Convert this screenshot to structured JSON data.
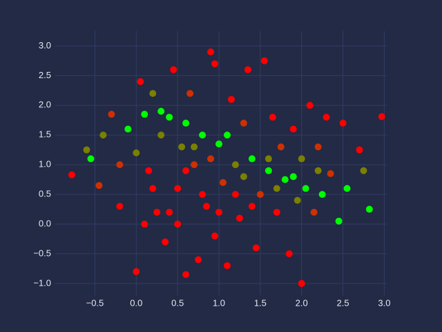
{
  "chart_data": {
    "type": "scatter",
    "xlim": [
      -0.98,
      3.03
    ],
    "ylim": [
      -1.2,
      3.25
    ],
    "grid": true,
    "xticks": [
      {
        "value": -0.5,
        "label": "−0.5"
      },
      {
        "value": 0,
        "label": "0.0"
      },
      {
        "value": 0.5,
        "label": "0.5"
      },
      {
        "value": 1,
        "label": "1.0"
      },
      {
        "value": 1.5,
        "label": "1.5"
      },
      {
        "value": 2,
        "label": "2.0"
      },
      {
        "value": 2.5,
        "label": "2.5"
      },
      {
        "value": 3,
        "label": "3.0"
      }
    ],
    "yticks": [
      {
        "value": -1,
        "label": "−1.0"
      },
      {
        "value": -0.5,
        "label": "−0.5"
      },
      {
        "value": 0,
        "label": "0.0"
      },
      {
        "value": 0.5,
        "label": "0.5"
      },
      {
        "value": 1,
        "label": "1.0"
      },
      {
        "value": 1.5,
        "label": "1.5"
      },
      {
        "value": 2,
        "label": "2.0"
      },
      {
        "value": 2.5,
        "label": "2.5"
      },
      {
        "value": 3,
        "label": "3.0"
      }
    ],
    "x": [
      -0.78,
      -0.6,
      -0.55,
      -0.45,
      -0.4,
      -0.3,
      -0.2,
      -0.1,
      0.0,
      0.05,
      0.1,
      0.15,
      0.2,
      0.25,
      0.3,
      0.35,
      0.4,
      0.45,
      0.5,
      0.55,
      0.6,
      0.65,
      0.7,
      0.75,
      0.8,
      0.85,
      0.9,
      0.95,
      1.0,
      1.05,
      1.1,
      1.15,
      1.2,
      1.25,
      1.3,
      1.35,
      1.4,
      1.45,
      1.5,
      1.55,
      1.6,
      1.65,
      1.7,
      1.75,
      1.8,
      1.85,
      1.9,
      1.95,
      2.0,
      2.0,
      2.05,
      2.1,
      2.15,
      2.2,
      2.25,
      2.3,
      2.35,
      2.45,
      2.5,
      2.55,
      2.7,
      2.75,
      2.82,
      2.97,
      0.2,
      0.4,
      0.6,
      0.8,
      1.0,
      1.2,
      1.4,
      0.5,
      0.9,
      1.1,
      0.6,
      0.3,
      1.6,
      1.3,
      0.7,
      1.9,
      0.0,
      -0.2,
      0.1,
      1.7,
      2.2,
      0.95
    ],
    "values": [
      0.83,
      1.25,
      1.1,
      0.65,
      1.5,
      1.85,
      0.3,
      1.6,
      -0.8,
      2.4,
      1.85,
      0.9,
      2.2,
      0.2,
      1.5,
      -0.3,
      1.8,
      2.6,
      0.6,
      1.3,
      -0.85,
      2.2,
      1.0,
      -0.6,
      1.5,
      0.3,
      2.9,
      2.7,
      1.35,
      0.7,
      -0.7,
      2.1,
      1.0,
      0.1,
      1.7,
      2.6,
      1.1,
      -0.4,
      0.5,
      2.75,
      0.9,
      1.8,
      0.2,
      1.3,
      0.75,
      -0.5,
      1.6,
      0.4,
      -1.0,
      1.1,
      0.6,
      2.0,
      0.2,
      1.3,
      0.5,
      1.8,
      0.85,
      0.05,
      1.7,
      0.6,
      1.25,
      0.9,
      0.25,
      1.81,
      0.6,
      0.2,
      0.9,
      0.5,
      0.2,
      0.5,
      0.3,
      0.0,
      1.1,
      1.5,
      1.7,
      1.9,
      1.1,
      0.8,
      1.3,
      0.8,
      1.2,
      1.0,
      0.0,
      0.6,
      0.9,
      -0.2
    ],
    "colors": [
      "#ff0000",
      "#7a8000",
      "#00ff00",
      "#d03000",
      "#7a8000",
      "#d03000",
      "#ff0000",
      "#00ff00",
      "#ff0000",
      "#ff0000",
      "#00ff00",
      "#ff0000",
      "#7a8000",
      "#ff0000",
      "#7a8000",
      "#ff0000",
      "#00ff00",
      "#ff0000",
      "#ff0000",
      "#7a8000",
      "#ff0000",
      "#d03000",
      "#d03000",
      "#ff0000",
      "#00ff00",
      "#ff0000",
      "#ff0000",
      "#ff0000",
      "#00ff00",
      "#d03000",
      "#ff0000",
      "#ff0000",
      "#7a8000",
      "#ff0000",
      "#d03000",
      "#ff0000",
      "#00ff00",
      "#ff0000",
      "#d03000",
      "#ff0000",
      "#00ff00",
      "#ff0000",
      "#ff0000",
      "#d03000",
      "#00ff00",
      "#ff0000",
      "#ff0000",
      "#7a8000",
      "#ff0000",
      "#7a8000",
      "#00ff00",
      "#ff0000",
      "#d03000",
      "#d03000",
      "#00ff00",
      "#ff0000",
      "#d03000",
      "#00ff00",
      "#ff0000",
      "#00ff00",
      "#ff0000",
      "#7a8000",
      "#00ff00",
      "#ff0000",
      "#ff0000",
      "#ff0000",
      "#ff0000",
      "#ff0000",
      "#ff0000",
      "#ff0000",
      "#ff0000",
      "#ff0000",
      "#d03000",
      "#00ff00",
      "#00ff00",
      "#00ff00",
      "#7a8000",
      "#7a8000",
      "#7a8000",
      "#00ff00",
      "#7a8000",
      "#d03000",
      "#ff0000",
      "#7a8000",
      "#7a8000",
      "#ff0000"
    ]
  }
}
